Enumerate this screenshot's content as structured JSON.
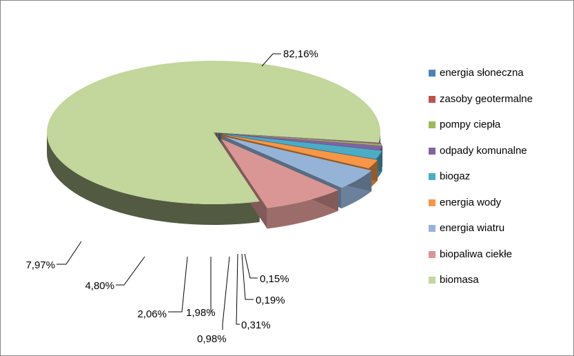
{
  "chart_data": {
    "type": "pie",
    "title": "",
    "legend_position": "right",
    "categories": [
      "energia słoneczna",
      "zasoby geotermalne",
      "pompy ciepła",
      "odpady komunalne",
      "biogaz",
      "energia wody",
      "energia wiatru",
      "biopaliwa ciekłe",
      "biomasa"
    ],
    "values": [
      0.15,
      0.19,
      0.31,
      0.98,
      1.98,
      2.06,
      4.8,
      7.97,
      82.16
    ],
    "labels": [
      "0,15%",
      "0,19%",
      "0,31%",
      "0,98%",
      "1,98%",
      "2,06%",
      "4,80%",
      "7,97%",
      "82,16%"
    ],
    "colors": [
      "#4F81BD",
      "#C0504D",
      "#9BBB59",
      "#8064A2",
      "#4BACC6",
      "#F79646",
      "#95B3D7",
      "#D99694",
      "#C3D69B"
    ]
  }
}
